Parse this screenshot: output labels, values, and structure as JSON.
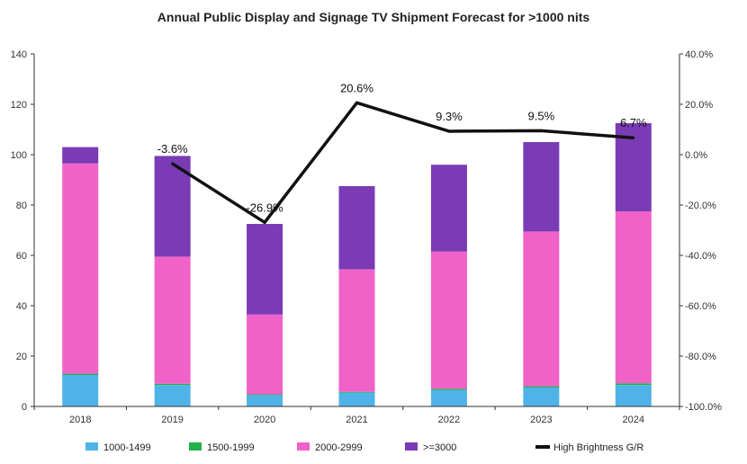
{
  "chart_data": {
    "type": "bar",
    "title": "Annual Public Display and Signage TV Shipment Forecast for >1000 nits",
    "categories": [
      "2018",
      "2019",
      "2020",
      "2021",
      "2022",
      "2023",
      "2024"
    ],
    "stacked": true,
    "series": [
      {
        "name": "1000-1499",
        "color": "#4fb3e8",
        "values": [
          12.5,
          8.5,
          4.5,
          5.5,
          6.5,
          7.5,
          8.5
        ]
      },
      {
        "name": "1500-1999",
        "color": "#22b14c",
        "values": [
          0.5,
          0.5,
          0.3,
          0.3,
          0.5,
          0.5,
          0.7
        ]
      },
      {
        "name": "2000-2999",
        "color": "#f062c8",
        "values": [
          83.5,
          50.5,
          31.7,
          48.7,
          54.5,
          61.5,
          68.3
        ]
      },
      {
        "name": ">=3000",
        "color": "#7a3bb5",
        "values": [
          6.5,
          40,
          36,
          33,
          34.5,
          35.5,
          35
        ]
      }
    ],
    "line_series": {
      "name": "High Brightness G/R",
      "color": "#111111",
      "axis": "right",
      "categories": [
        "2019",
        "2020",
        "2021",
        "2022",
        "2023",
        "2024"
      ],
      "values": [
        -3.6,
        -26.9,
        20.6,
        9.3,
        9.5,
        6.7
      ],
      "labels": [
        "-3.6%",
        "-26.9%",
        "20.6%",
        "9.3%",
        "9.5%",
        "6.7%"
      ]
    },
    "ylim": [
      0,
      140
    ],
    "yticks": [
      "0",
      "20",
      "40",
      "60",
      "80",
      "100",
      "120",
      "140"
    ],
    "y2lim": [
      -100,
      40
    ],
    "y2ticks": [
      "-100.0%",
      "-80.0%",
      "-60.0%",
      "-40.0%",
      "-20.0%",
      "0.0%",
      "20.0%",
      "40.0%"
    ],
    "xlabel": "",
    "ylabel": "",
    "grid": false,
    "legend_position": "bottom"
  }
}
